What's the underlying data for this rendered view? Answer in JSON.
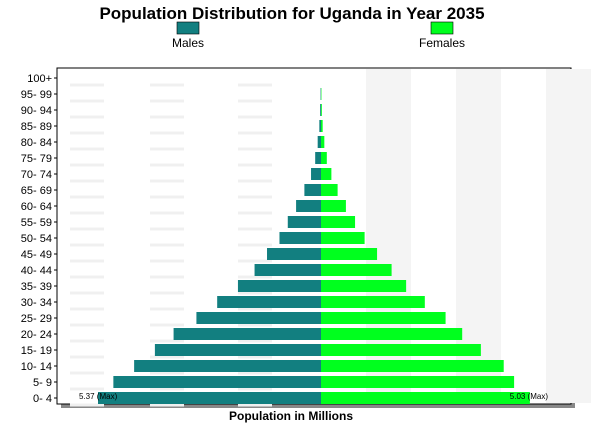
{
  "chart_data": {
    "type": "bar",
    "orientation": "horizontal",
    "title": "Population Distribution for Uganda in Year 2035",
    "xlabel": "Population in Millions",
    "ylabel": "",
    "legend_placement": "top",
    "categories": [
      "0- 4",
      "5- 9",
      "10- 14",
      "15- 19",
      "20- 24",
      "25- 29",
      "30- 34",
      "35- 39",
      "40- 44",
      "45- 49",
      "50- 54",
      "55- 59",
      "60- 64",
      "65- 69",
      "70- 74",
      "75- 79",
      "80- 84",
      "85- 89",
      "90- 94",
      "95- 99",
      "100+"
    ],
    "series": [
      {
        "name": "Males",
        "color": "#127f80",
        "values": [
          5.37,
          5.0,
          4.5,
          4.0,
          3.55,
          3.0,
          2.5,
          2.0,
          1.6,
          1.3,
          1.0,
          0.8,
          0.6,
          0.4,
          0.24,
          0.14,
          0.08,
          0.04,
          0.02,
          0.01,
          0.0
        ]
      },
      {
        "name": "Females",
        "color": "#00ff1e",
        "values": [
          5.03,
          4.65,
          4.4,
          3.85,
          3.4,
          3.0,
          2.5,
          2.05,
          1.7,
          1.35,
          1.05,
          0.82,
          0.6,
          0.4,
          0.25,
          0.14,
          0.08,
          0.04,
          0.02,
          0.01,
          0.0
        ]
      }
    ],
    "xlim": [
      -5.37,
      5.37
    ],
    "annotations": {
      "male_max": "5.37 (Max)",
      "female_max": "5.03 (Max)"
    },
    "grid": true
  }
}
